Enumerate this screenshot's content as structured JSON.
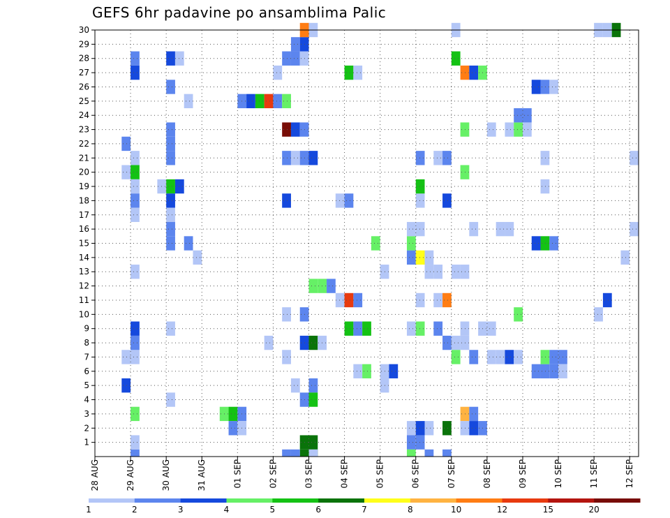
{
  "chart_data": {
    "type": "heatmap",
    "title": "GEFS 6hr padavine po ansamblima Palic",
    "xlabel": "",
    "ylabel": "",
    "x_tick_labels": [
      "28 AUG",
      "29 AUG",
      "30 AUG",
      "31 AUG",
      "01 SEP",
      "02 SEP",
      "03 SEP",
      "04 SEP",
      "05 SEP",
      "06 SEP",
      "07 SEP",
      "08 SEP",
      "09 SEP",
      "10 SEP",
      "11 SEP",
      "12 SEP"
    ],
    "xlim_days": [
      0,
      15.25
    ],
    "y_tick_labels": [
      1,
      2,
      3,
      4,
      5,
      6,
      7,
      8,
      9,
      10,
      11,
      12,
      13,
      14,
      15,
      16,
      17,
      18,
      19,
      20,
      21,
      22,
      23,
      24,
      25,
      26,
      27,
      28,
      29,
      30
    ],
    "ylim": [
      0,
      30
    ],
    "grid": true,
    "cell_hours": 6,
    "legend_position": "bottom",
    "legend": {
      "labels": [
        "1",
        "2",
        "3",
        "4",
        "5",
        "6",
        "7",
        "8",
        "10",
        "12",
        "15",
        "20"
      ],
      "colors": [
        "#b3c6f7",
        "#5c85ee",
        "#1549dd",
        "#66f066",
        "#14c214",
        "#0a730a",
        "#ffff1a",
        "#ffb341",
        "#ff7d14",
        "#e83a0f",
        "#b4150f",
        "#780c06"
      ]
    },
    "cells_note": "each cell: [day offset from 28 AUG 00Z, ensemble member, precipitation class index into legend colors]",
    "cells": [
      [
        1.0,
        0,
        1
      ],
      [
        0.75,
        20,
        0
      ],
      [
        1.0,
        20,
        4
      ],
      [
        1.0,
        21,
        0
      ],
      [
        1.0,
        19,
        0
      ],
      [
        0.75,
        22,
        1
      ],
      [
        1.0,
        18,
        1
      ],
      [
        1.0,
        17,
        0
      ],
      [
        1.0,
        13,
        0
      ],
      [
        1.0,
        1,
        0
      ],
      [
        1.0,
        3,
        3
      ],
      [
        0.75,
        5,
        2
      ],
      [
        0.75,
        7,
        0
      ],
      [
        1.0,
        7,
        0
      ],
      [
        1.0,
        8,
        1
      ],
      [
        1.0,
        9,
        2
      ],
      [
        1.0,
        27,
        2
      ],
      [
        1.0,
        28,
        1
      ],
      [
        2.0,
        28,
        2
      ],
      [
        2.25,
        28,
        0
      ],
      [
        2.0,
        26,
        1
      ],
      [
        2.0,
        23,
        1
      ],
      [
        2.0,
        22,
        1
      ],
      [
        2.0,
        21,
        1
      ],
      [
        1.75,
        19,
        0
      ],
      [
        2.0,
        19,
        4
      ],
      [
        2.25,
        19,
        2
      ],
      [
        2.0,
        18,
        2
      ],
      [
        2.0,
        17,
        0
      ],
      [
        2.0,
        16,
        1
      ],
      [
        2.0,
        15,
        1
      ],
      [
        2.5,
        15,
        1
      ],
      [
        2.5,
        25,
        0
      ],
      [
        2.0,
        9,
        0
      ],
      [
        2.0,
        4,
        0
      ],
      [
        2.75,
        14,
        0
      ],
      [
        3.5,
        3,
        3
      ],
      [
        3.75,
        3,
        4
      ],
      [
        4.0,
        3,
        1
      ],
      [
        3.75,
        2,
        1
      ],
      [
        4.0,
        2,
        0
      ],
      [
        4.0,
        25,
        1
      ],
      [
        4.25,
        25,
        2
      ],
      [
        4.5,
        25,
        4
      ],
      [
        4.75,
        25,
        9
      ],
      [
        5.0,
        25,
        1
      ],
      [
        5.25,
        25,
        3
      ],
      [
        5.0,
        27,
        0
      ],
      [
        5.25,
        28,
        1
      ],
      [
        5.5,
        28,
        1
      ],
      [
        5.75,
        28,
        0
      ],
      [
        5.5,
        29,
        1
      ],
      [
        5.75,
        29,
        2
      ],
      [
        5.25,
        23,
        11
      ],
      [
        5.5,
        23,
        2
      ],
      [
        5.75,
        23,
        1
      ],
      [
        5.25,
        21,
        1
      ],
      [
        5.5,
        21,
        0
      ],
      [
        5.75,
        21,
        1
      ],
      [
        6.0,
        21,
        2
      ],
      [
        5.25,
        18,
        2
      ],
      [
        5.25,
        10,
        0
      ],
      [
        5.75,
        10,
        1
      ],
      [
        4.75,
        8,
        0
      ],
      [
        5.75,
        8,
        2
      ],
      [
        6.0,
        8,
        5
      ],
      [
        6.25,
        8,
        0
      ],
      [
        5.25,
        7,
        0
      ],
      [
        5.5,
        5,
        0
      ],
      [
        6.0,
        5,
        1
      ],
      [
        5.75,
        4,
        1
      ],
      [
        6.0,
        4,
        4
      ],
      [
        5.75,
        1,
        5
      ],
      [
        6.0,
        1,
        5
      ],
      [
        5.75,
        0,
        5
      ],
      [
        6.0,
        0,
        5
      ],
      [
        5.25,
        0,
        1
      ],
      [
        5.5,
        0,
        1
      ],
      [
        6.0,
        0,
        0
      ],
      [
        5.75,
        30,
        8
      ],
      [
        6.0,
        30,
        0
      ],
      [
        6.0,
        12,
        3
      ],
      [
        6.25,
        12,
        3
      ],
      [
        6.5,
        12,
        1
      ],
      [
        6.75,
        11,
        0
      ],
      [
        7.0,
        11,
        9
      ],
      [
        7.25,
        11,
        1
      ],
      [
        7.0,
        9,
        4
      ],
      [
        7.25,
        9,
        1
      ],
      [
        7.5,
        9,
        4
      ],
      [
        7.25,
        6,
        0
      ],
      [
        7.5,
        6,
        3
      ],
      [
        6.75,
        18,
        0
      ],
      [
        7.0,
        18,
        1
      ],
      [
        7.0,
        27,
        4
      ],
      [
        7.25,
        27,
        0
      ],
      [
        7.75,
        15,
        3
      ],
      [
        8.0,
        13,
        0
      ],
      [
        8.0,
        6,
        0
      ],
      [
        8.25,
        6,
        2
      ],
      [
        8.0,
        5,
        0
      ],
      [
        8.75,
        15,
        3
      ],
      [
        8.75,
        14,
        1
      ],
      [
        9.0,
        14,
        6
      ],
      [
        9.25,
        14,
        0
      ],
      [
        8.75,
        16,
        0
      ],
      [
        9.0,
        16,
        0
      ],
      [
        9.0,
        18,
        0
      ],
      [
        9.0,
        19,
        4
      ],
      [
        9.0,
        21,
        1
      ],
      [
        9.25,
        13,
        0
      ],
      [
        9.0,
        11,
        0
      ],
      [
        9.5,
        11,
        0
      ],
      [
        9.75,
        11,
        8
      ],
      [
        8.75,
        9,
        0
      ],
      [
        9.0,
        9,
        3
      ],
      [
        9.5,
        9,
        1
      ],
      [
        8.75,
        2,
        0
      ],
      [
        9.0,
        2,
        2
      ],
      [
        9.25,
        2,
        0
      ],
      [
        8.75,
        1,
        1
      ],
      [
        9.0,
        1,
        1
      ],
      [
        8.75,
        0,
        3
      ],
      [
        9.25,
        0,
        1
      ],
      [
        9.5,
        21,
        0
      ],
      [
        9.75,
        21,
        1
      ],
      [
        9.75,
        18,
        2
      ],
      [
        9.75,
        2,
        5
      ],
      [
        9.5,
        13,
        0
      ],
      [
        9.75,
        8,
        1
      ],
      [
        10.0,
        8,
        0
      ],
      [
        9.75,
        0,
        1
      ],
      [
        10.0,
        28,
        4
      ],
      [
        10.0,
        30,
        0
      ],
      [
        10.25,
        27,
        8
      ],
      [
        10.5,
        27,
        2
      ],
      [
        10.75,
        27,
        3
      ],
      [
        10.25,
        23,
        3
      ],
      [
        10.25,
        20,
        3
      ],
      [
        10.5,
        16,
        0
      ],
      [
        10.25,
        13,
        0
      ],
      [
        10.0,
        13,
        0
      ],
      [
        10.25,
        9,
        0
      ],
      [
        10.25,
        8,
        0
      ],
      [
        10.0,
        7,
        3
      ],
      [
        10.5,
        7,
        1
      ],
      [
        10.25,
        3,
        7
      ],
      [
        10.5,
        3,
        1
      ],
      [
        10.25,
        2,
        0
      ],
      [
        10.5,
        2,
        2
      ],
      [
        10.75,
        2,
        1
      ],
      [
        10.75,
        9,
        0
      ],
      [
        11.0,
        9,
        0
      ],
      [
        11.0,
        23,
        0
      ],
      [
        11.25,
        16,
        0
      ],
      [
        11.5,
        16,
        0
      ],
      [
        11.0,
        7,
        0
      ],
      [
        11.25,
        7,
        0
      ],
      [
        11.5,
        7,
        2
      ],
      [
        11.75,
        7,
        0
      ],
      [
        11.75,
        10,
        3
      ],
      [
        11.5,
        23,
        0
      ],
      [
        11.75,
        23,
        3
      ],
      [
        12.0,
        23,
        0
      ],
      [
        11.75,
        24,
        1
      ],
      [
        12.0,
        24,
        1
      ],
      [
        12.25,
        26,
        2
      ],
      [
        12.5,
        26,
        1
      ],
      [
        12.75,
        26,
        0
      ],
      [
        12.25,
        15,
        2
      ],
      [
        12.5,
        15,
        4
      ],
      [
        12.75,
        15,
        1
      ],
      [
        12.5,
        21,
        0
      ],
      [
        12.5,
        19,
        0
      ],
      [
        12.25,
        6,
        1
      ],
      [
        12.5,
        6,
        1
      ],
      [
        12.5,
        7,
        3
      ],
      [
        12.75,
        7,
        1
      ],
      [
        13.0,
        7,
        1
      ],
      [
        12.75,
        6,
        1
      ],
      [
        13.0,
        6,
        0
      ],
      [
        14.0,
        30,
        0
      ],
      [
        14.25,
        30,
        0
      ],
      [
        14.5,
        30,
        5
      ],
      [
        14.25,
        11,
        2
      ],
      [
        14.0,
        10,
        0
      ],
      [
        14.75,
        14,
        0
      ],
      [
        15.0,
        21,
        0
      ],
      [
        15.0,
        16,
        0
      ]
    ]
  }
}
